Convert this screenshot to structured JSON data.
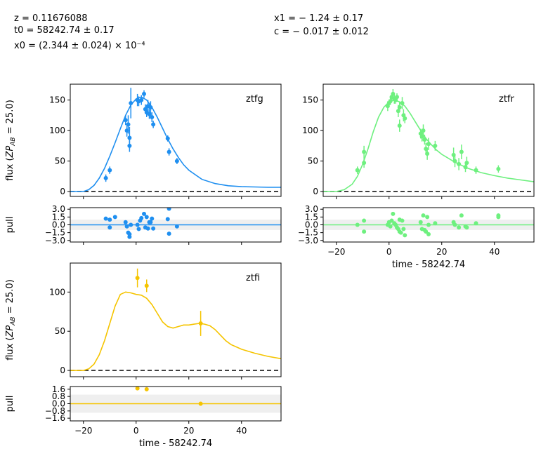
{
  "header": {
    "z": "z = 0.11676088",
    "t0": "t0 = 58242.74 ± 0.17",
    "x0": "x0 = (2.344 ± 0.024) × 10⁻⁴",
    "x1": "x1 = − 1.24 ± 0.17",
    "c": "c = − 0.017 ± 0.012"
  },
  "chart_data": [
    {
      "type": "scatter",
      "band": "ztfg",
      "color": "#1f8ff0",
      "xlim": [
        -25,
        55
      ],
      "ylim": [
        -8,
        176
      ],
      "yticks": [
        "0",
        "50",
        "100",
        "150"
      ],
      "ylabel": "flux (ZP_AB = 25.0)",
      "model": {
        "x": [
          -25,
          -20,
          -18,
          -16,
          -14,
          -12,
          -10,
          -8,
          -6,
          -4,
          -2,
          0,
          2,
          4,
          6,
          8,
          10,
          12,
          14,
          16,
          18,
          20,
          25,
          30,
          35,
          40,
          45,
          50,
          55
        ],
        "y": [
          0,
          0,
          3,
          10,
          22,
          38,
          58,
          80,
          103,
          125,
          142,
          152,
          155,
          150,
          138,
          122,
          104,
          86,
          70,
          56,
          44,
          35,
          20,
          13,
          9.5,
          8,
          7.5,
          7,
          7
        ]
      },
      "points": [
        {
          "x": -11.5,
          "y": 22,
          "e": 6
        },
        {
          "x": -10,
          "y": 35,
          "e": 6
        },
        {
          "x": -4,
          "y": 117,
          "e": 8
        },
        {
          "x": -3.5,
          "y": 100,
          "e": 10
        },
        {
          "x": -3,
          "y": 110,
          "e": 15
        },
        {
          "x": -2.5,
          "y": 88,
          "e": 18
        },
        {
          "x": -2.5,
          "y": 75,
          "e": 10
        },
        {
          "x": -2,
          "y": 145,
          "e": 25
        },
        {
          "x": 0.5,
          "y": 150,
          "e": 10
        },
        {
          "x": 1,
          "y": 148,
          "e": 8
        },
        {
          "x": 2,
          "y": 150,
          "e": 8
        },
        {
          "x": 3,
          "y": 160,
          "e": 6
        },
        {
          "x": 3.5,
          "y": 135,
          "e": 8
        },
        {
          "x": 4,
          "y": 130,
          "e": 8
        },
        {
          "x": 4.5,
          "y": 140,
          "e": 10
        },
        {
          "x": 5,
          "y": 127,
          "e": 8
        },
        {
          "x": 5.5,
          "y": 138,
          "e": 10
        },
        {
          "x": 6,
          "y": 122,
          "e": 8
        },
        {
          "x": 6.5,
          "y": 110,
          "e": 6
        },
        {
          "x": 12,
          "y": 87,
          "e": 5
        },
        {
          "x": 12.5,
          "y": 65,
          "e": 6
        },
        {
          "x": 15.5,
          "y": 50,
          "e": 5
        }
      ],
      "pull": {
        "ylim": [
          -3.3,
          3.3
        ],
        "yticks": [
          "3.0",
          "1.5",
          "0.0",
          "−1.5",
          "−3.0"
        ],
        "label": "pull",
        "points": [
          [
            -11.5,
            1.2
          ],
          [
            -10,
            1
          ],
          [
            -10,
            -0.5
          ],
          [
            -8,
            1.5
          ],
          [
            -4,
            0.5
          ],
          [
            -3.5,
            -0.3
          ],
          [
            -3,
            -1.5
          ],
          [
            -2.5,
            -2.3
          ],
          [
            -2.5,
            -1.8
          ],
          [
            -2,
            0
          ],
          [
            0.5,
            0
          ],
          [
            1,
            -0.8
          ],
          [
            1.5,
            0.8
          ],
          [
            2,
            1.3
          ],
          [
            3,
            2.1
          ],
          [
            3.5,
            -0.5
          ],
          [
            4,
            1.5
          ],
          [
            4.5,
            -0.7
          ],
          [
            5,
            0.5
          ],
          [
            5.5,
            0.5
          ],
          [
            6,
            1.2
          ],
          [
            6.5,
            -0.7
          ],
          [
            12,
            1.1
          ],
          [
            12.5,
            -1.7
          ],
          [
            12.5,
            3.1
          ],
          [
            15.5,
            -0.3
          ]
        ]
      }
    },
    {
      "type": "scatter",
      "band": "ztfr",
      "color": "#6ef07f",
      "xlim": [
        -25,
        55
      ],
      "ylim": [
        -8,
        176
      ],
      "yticks": [
        "0",
        "50",
        "100",
        "150"
      ],
      "xticks": [
        "−20",
        "0",
        "20",
        "40"
      ],
      "xlabel": "time - 58242.74",
      "model": {
        "x": [
          -25,
          -20,
          -17,
          -14,
          -12,
          -10,
          -8,
          -6,
          -4,
          -2,
          0,
          2,
          4,
          6,
          8,
          10,
          12,
          14,
          16,
          18,
          20,
          25,
          30,
          35,
          40,
          45,
          50,
          55
        ],
        "y": [
          0,
          0,
          3,
          12,
          25,
          45,
          70,
          98,
          122,
          138,
          147,
          150,
          147,
          140,
          128,
          114,
          100,
          87,
          77,
          68,
          61,
          48,
          38,
          31,
          26,
          22,
          19,
          16
        ]
      },
      "points": [
        {
          "x": -12,
          "y": 35,
          "e": 6
        },
        {
          "x": -9.5,
          "y": 47,
          "e": 8
        },
        {
          "x": -9.5,
          "y": 65,
          "e": 10
        },
        {
          "x": -0.5,
          "y": 140,
          "e": 8
        },
        {
          "x": 0,
          "y": 145,
          "e": 6
        },
        {
          "x": 0.5,
          "y": 148,
          "e": 6
        },
        {
          "x": 1,
          "y": 155,
          "e": 6
        },
        {
          "x": 1.5,
          "y": 160,
          "e": 8
        },
        {
          "x": 2,
          "y": 152,
          "e": 8
        },
        {
          "x": 2.5,
          "y": 150,
          "e": 6
        },
        {
          "x": 3,
          "y": 155,
          "e": 6
        },
        {
          "x": 3.5,
          "y": 132,
          "e": 10
        },
        {
          "x": 4,
          "y": 138,
          "e": 8
        },
        {
          "x": 4,
          "y": 108,
          "e": 10
        },
        {
          "x": 5,
          "y": 145,
          "e": 10
        },
        {
          "x": 5.5,
          "y": 125,
          "e": 10
        },
        {
          "x": 6,
          "y": 120,
          "e": 8
        },
        {
          "x": 12,
          "y": 95,
          "e": 8
        },
        {
          "x": 12.5,
          "y": 90,
          "e": 8
        },
        {
          "x": 13,
          "y": 100,
          "e": 10
        },
        {
          "x": 13.5,
          "y": 85,
          "e": 8
        },
        {
          "x": 14,
          "y": 70,
          "e": 10
        },
        {
          "x": 14.5,
          "y": 62,
          "e": 10
        },
        {
          "x": 15,
          "y": 78,
          "e": 10
        },
        {
          "x": 17.5,
          "y": 75,
          "e": 8
        },
        {
          "x": 24.5,
          "y": 60,
          "e": 12
        },
        {
          "x": 25,
          "y": 50,
          "e": 10
        },
        {
          "x": 26.5,
          "y": 45,
          "e": 10
        },
        {
          "x": 27.5,
          "y": 65,
          "e": 12
        },
        {
          "x": 29,
          "y": 40,
          "e": 8
        },
        {
          "x": 29.5,
          "y": 47,
          "e": 10
        },
        {
          "x": 33,
          "y": 35,
          "e": 6
        },
        {
          "x": 41.5,
          "y": 37,
          "e": 6
        }
      ],
      "pull": {
        "ylim": [
          -3.3,
          3.3
        ],
        "yticks": [
          "3.0",
          "1.5",
          "0.0",
          "−1.5",
          "−3.0"
        ],
        "label": "",
        "points": [
          [
            -12,
            0
          ],
          [
            -9.5,
            0.8
          ],
          [
            -9.5,
            -1.3
          ],
          [
            -0.5,
            0
          ],
          [
            0,
            0.5
          ],
          [
            0.5,
            -0.3
          ],
          [
            1,
            0.8
          ],
          [
            1.5,
            2.1
          ],
          [
            2,
            0.3
          ],
          [
            2.5,
            0
          ],
          [
            3,
            -0.5
          ],
          [
            3.5,
            -0.8
          ],
          [
            4,
            -1.3
          ],
          [
            4,
            1
          ],
          [
            4.5,
            -1.5
          ],
          [
            5,
            0.8
          ],
          [
            5.5,
            -0.8
          ],
          [
            6,
            -2
          ],
          [
            12,
            0.5
          ],
          [
            12.5,
            -0.8
          ],
          [
            13,
            1.8
          ],
          [
            13.5,
            -1
          ],
          [
            14,
            -1.3
          ],
          [
            14.5,
            1.5
          ],
          [
            15,
            -1.8
          ],
          [
            15,
            0
          ],
          [
            17.5,
            0.3
          ],
          [
            24.5,
            0.5
          ],
          [
            25,
            0
          ],
          [
            26.5,
            -0.5
          ],
          [
            27.5,
            1.8
          ],
          [
            29,
            -0.3
          ],
          [
            29.5,
            -0.5
          ],
          [
            33,
            0.3
          ],
          [
            41.5,
            1.5
          ],
          [
            41.5,
            1.8
          ]
        ]
      }
    },
    {
      "type": "scatter",
      "band": "ztfi",
      "color": "#f5c400",
      "xlim": [
        -25,
        55
      ],
      "ylim": [
        -8,
        137
      ],
      "yticks": [
        "0",
        "50",
        "100"
      ],
      "xticks": [
        "−20",
        "0",
        "20",
        "40"
      ],
      "xlabel": "time - 58242.74",
      "ylabel": "flux (ZP_AB = 25.0)",
      "model": {
        "x": [
          -25,
          -20,
          -18,
          -16,
          -14,
          -12,
          -10,
          -8,
          -6,
          -4,
          -2,
          0,
          2,
          4,
          6,
          8,
          10,
          12,
          14,
          16,
          18,
          20,
          22,
          24,
          26,
          28,
          30,
          32,
          34,
          36,
          38,
          40,
          45,
          50,
          55
        ],
        "y": [
          0,
          0,
          2,
          8,
          20,
          38,
          60,
          82,
          97,
          100,
          99,
          97,
          96,
          92,
          84,
          73,
          62,
          56,
          54,
          56,
          58,
          58,
          59,
          60,
          59,
          57,
          52,
          45,
          38,
          33,
          30,
          27,
          22,
          18,
          15
        ]
      },
      "points": [
        {
          "x": 0.5,
          "y": 118,
          "e": 12
        },
        {
          "x": 4,
          "y": 108,
          "e": 8
        },
        {
          "x": 24.5,
          "y": 60,
          "e": 16
        }
      ],
      "pull": {
        "ylim": [
          -1.9,
          1.9
        ],
        "yticks": [
          "1.6",
          "0.8",
          "0.0",
          "−0.8",
          "−1.6"
        ],
        "label": "pull",
        "points": [
          [
            0.5,
            1.7
          ],
          [
            4,
            1.6
          ],
          [
            24.5,
            0
          ]
        ]
      }
    }
  ]
}
